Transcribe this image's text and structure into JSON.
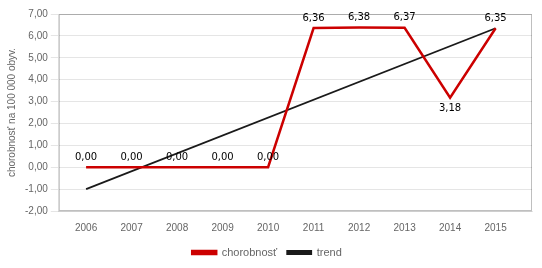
{
  "chart_data": {
    "type": "line",
    "x": [
      2006,
      2007,
      2008,
      2009,
      2010,
      2011,
      2012,
      2013,
      2014,
      2015
    ],
    "series": [
      {
        "name": "chorobnosť",
        "color": "#cc0000",
        "values": [
          0.0,
          0.0,
          0.0,
          0.0,
          0.0,
          6.36,
          6.38,
          6.37,
          3.18,
          6.35
        ],
        "data_labels": true,
        "value_labels": [
          "0,00",
          "0,00",
          "0,00",
          "0,00",
          "0,00",
          "6,36",
          "6,38",
          "6,37",
          "3,18",
          "6,35"
        ]
      },
      {
        "name": "trend",
        "color": "#1a1a1a",
        "x": [
          2006,
          2015
        ],
        "values": [
          -1.0,
          6.35
        ]
      }
    ],
    "ylabel": "chorobnosť na 100 000 obyv.",
    "xlim": [
      2005.4,
      2015.8
    ],
    "xticks": [
      2006,
      2007,
      2008,
      2009,
      2010,
      2011,
      2012,
      2013,
      2014,
      2015
    ],
    "ylim": [
      -2.0,
      7.0
    ],
    "yticks": [
      {
        "value": -2.0,
        "label": "-2,00"
      },
      {
        "value": -1.0,
        "label": "-1,00"
      },
      {
        "value": 0.0,
        "label": "0,00"
      },
      {
        "value": 1.0,
        "label": "1,00"
      },
      {
        "value": 2.0,
        "label": "2,00"
      },
      {
        "value": 3.0,
        "label": "3,00"
      },
      {
        "value": 4.0,
        "label": "4,00"
      },
      {
        "value": 5.0,
        "label": "5,00"
      },
      {
        "value": 6.0,
        "label": "6,00"
      },
      {
        "value": 7.0,
        "label": "7,00"
      }
    ],
    "grid": "y",
    "legend": "bottom"
  }
}
